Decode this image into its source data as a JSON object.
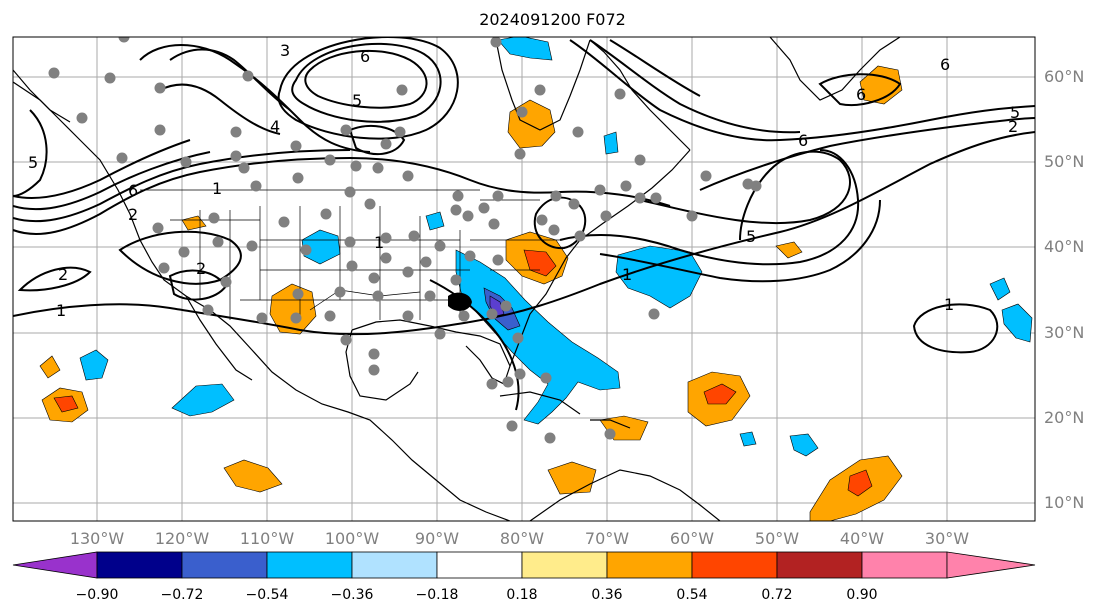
{
  "map": {
    "title": "2024091200 F072",
    "lon_labels": [
      "130°W",
      "120°W",
      "110°W",
      "100°W",
      "90°W",
      "80°W",
      "70°W",
      "60°W",
      "50°W",
      "40°W",
      "30°W"
    ],
    "lat_labels": [
      "60°N",
      "50°N",
      "40°N",
      "30°N",
      "20°N",
      "10°N"
    ],
    "contour_labels": [
      "6",
      "5",
      "4",
      "3",
      "2",
      "1",
      "6",
      "5",
      "6",
      "2",
      "1",
      "2",
      "1",
      "1",
      "6",
      "5",
      "2",
      "6",
      "5",
      "1"
    ]
  },
  "colorbar": {
    "ticks": [
      "−0.90",
      "−0.72",
      "−0.54",
      "−0.36",
      "−0.18",
      "0.18",
      "0.36",
      "0.54",
      "0.72",
      "0.90"
    ],
    "colors": [
      "#9932cc",
      "#00008b",
      "#3a5fcd",
      "#00bfff",
      "#b0e2ff",
      "#ffffff",
      "#ffec8b",
      "#ffa500",
      "#ff4500",
      "#b22222",
      "#ff82ab"
    ]
  }
}
